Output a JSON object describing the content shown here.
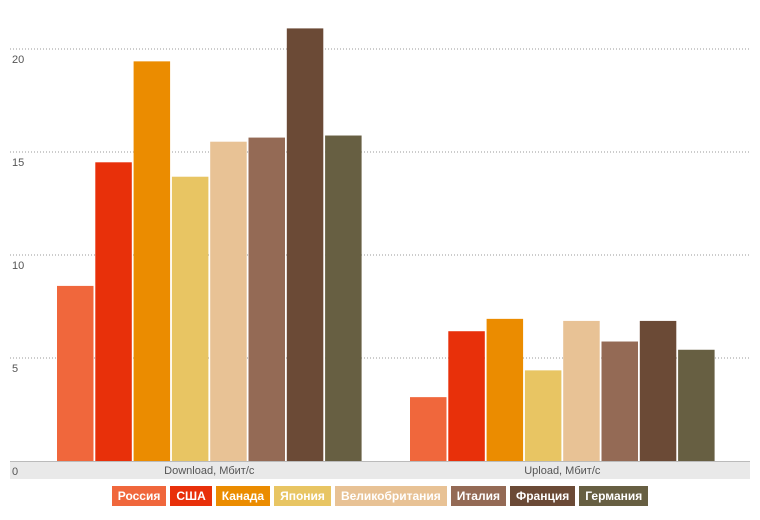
{
  "chart_data": {
    "type": "bar",
    "categories": [
      "Download,  Мбит/с",
      "Upload, Мбит/с"
    ],
    "series": [
      {
        "name": "Россия",
        "color": "#f0673c",
        "values": [
          8.5,
          3.1
        ]
      },
      {
        "name": "США",
        "color": "#e8300a",
        "values": [
          14.5,
          6.3
        ]
      },
      {
        "name": "Канада",
        "color": "#eb8c00",
        "values": [
          19.4,
          6.9
        ]
      },
      {
        "name": "Япония",
        "color": "#e8c563",
        "values": [
          13.8,
          4.4
        ]
      },
      {
        "name": "Великобритания",
        "color": "#e8c295",
        "values": [
          15.5,
          6.8
        ]
      },
      {
        "name": "Италия",
        "color": "#946a55",
        "values": [
          15.7,
          5.8
        ]
      },
      {
        "name": "Франция",
        "color": "#6b4a36",
        "values": [
          21.0,
          6.8
        ]
      },
      {
        "name": "Германия",
        "color": "#675f42",
        "values": [
          15.8,
          5.4
        ]
      }
    ],
    "y_ticks": [
      "0",
      "5",
      "10",
      "15",
      "20"
    ],
    "ylim": [
      0,
      21
    ],
    "grid": true,
    "legend_position": "bottom"
  }
}
